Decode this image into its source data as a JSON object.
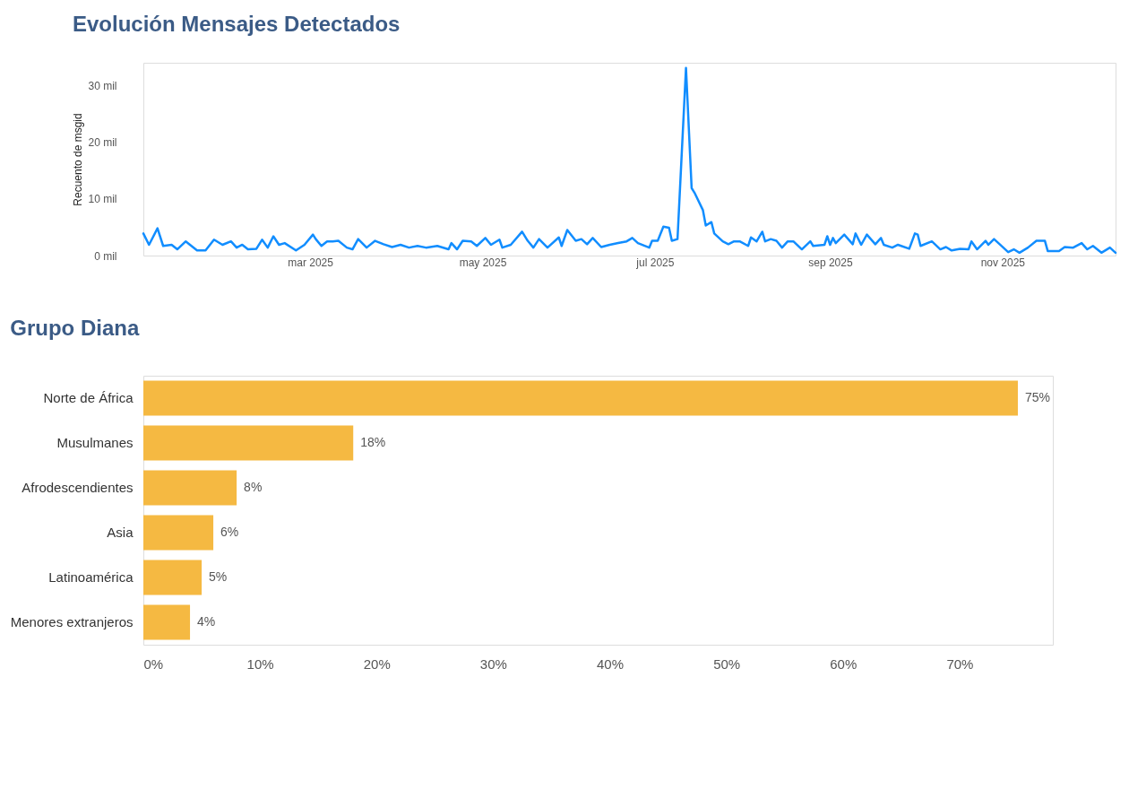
{
  "chart_data": [
    {
      "type": "line",
      "title": "Evolución Mensajes Detectados",
      "ylabel": "Recuento de msgid",
      "x": [
        "2025-01-01",
        "2025-01-03",
        "2025-01-06",
        "2025-01-08",
        "2025-01-11",
        "2025-01-13",
        "2025-01-16",
        "2025-01-20",
        "2025-01-23",
        "2025-01-26",
        "2025-01-29",
        "2025-02-01",
        "2025-02-03",
        "2025-02-05",
        "2025-02-07",
        "2025-02-10",
        "2025-02-12",
        "2025-02-14",
        "2025-02-16",
        "2025-02-18",
        "2025-02-20",
        "2025-02-24",
        "2025-02-27",
        "2025-03-02",
        "2025-03-03",
        "2025-03-05",
        "2025-03-07",
        "2025-03-09",
        "2025-03-11",
        "2025-03-14",
        "2025-03-16",
        "2025-03-18",
        "2025-03-21",
        "2025-03-24",
        "2025-03-27",
        "2025-03-30",
        "2025-04-02",
        "2025-04-05",
        "2025-04-08",
        "2025-04-11",
        "2025-04-15",
        "2025-04-19",
        "2025-04-20",
        "2025-04-22",
        "2025-04-24",
        "2025-04-27",
        "2025-04-29",
        "2025-05-02",
        "2025-05-04",
        "2025-05-07",
        "2025-05-08",
        "2025-05-11",
        "2025-05-15",
        "2025-05-17",
        "2025-05-19",
        "2025-05-21",
        "2025-05-24",
        "2025-05-28",
        "2025-05-29",
        "2025-05-31",
        "2025-06-03",
        "2025-06-05",
        "2025-06-07",
        "2025-06-09",
        "2025-06-12",
        "2025-06-15",
        "2025-06-18",
        "2025-06-21",
        "2025-06-23",
        "2025-06-25",
        "2025-06-29",
        "2025-06-30",
        "2025-07-02",
        "2025-07-04",
        "2025-07-06",
        "2025-07-07",
        "2025-07-09",
        "2025-07-12",
        "2025-07-14",
        "2025-07-15",
        "2025-07-18",
        "2025-07-19",
        "2025-07-21",
        "2025-07-22",
        "2025-07-25",
        "2025-07-27",
        "2025-07-29",
        "2025-07-31",
        "2025-08-03",
        "2025-08-04",
        "2025-08-06",
        "2025-08-08",
        "2025-08-09",
        "2025-08-11",
        "2025-08-13",
        "2025-08-15",
        "2025-08-17",
        "2025-08-19",
        "2025-08-22",
        "2025-08-25",
        "2025-08-26",
        "2025-08-30",
        "2025-08-31",
        "2025-09-01",
        "2025-09-02",
        "2025-09-03",
        "2025-09-06",
        "2025-09-09",
        "2025-09-10",
        "2025-09-12",
        "2025-09-14",
        "2025-09-17",
        "2025-09-19",
        "2025-09-20",
        "2025-09-23",
        "2025-09-25",
        "2025-09-29",
        "2025-10-01",
        "2025-10-02",
        "2025-10-03",
        "2025-10-07",
        "2025-10-10",
        "2025-10-12",
        "2025-10-14",
        "2025-10-17",
        "2025-10-20",
        "2025-10-21",
        "2025-10-23",
        "2025-10-26",
        "2025-10-27",
        "2025-10-29",
        "2025-10-31",
        "2025-11-03",
        "2025-11-05",
        "2025-11-07",
        "2025-11-10",
        "2025-11-13",
        "2025-11-16",
        "2025-11-17",
        "2025-11-21",
        "2025-11-23",
        "2025-11-26",
        "2025-11-29",
        "2025-12-01",
        "2025-12-03",
        "2025-12-06",
        "2025-12-09",
        "2025-12-11"
      ],
      "series": [
        {
          "color": "#118dff",
          "values": [
            3.9,
            1.9,
            4.8,
            1.7,
            1.9,
            1.1,
            2.5,
            0.9,
            0.9,
            2.8,
            1.9,
            2.5,
            1.4,
            1.9,
            1.1,
            1.2,
            2.8,
            1.4,
            3.4,
            1.9,
            2.2,
            0.9,
            1.9,
            3.7,
            2.9,
            1.7,
            2.5,
            2.5,
            2.6,
            1.4,
            1.1,
            2.9,
            1.4,
            2.6,
            2.0,
            1.5,
            1.9,
            1.4,
            1.7,
            1.4,
            1.7,
            1.1,
            2.2,
            1.1,
            2.6,
            2.5,
            1.7,
            3.1,
            1.9,
            2.8,
            1.4,
            1.9,
            4.2,
            2.6,
            1.4,
            2.9,
            1.4,
            3.2,
            1.7,
            4.5,
            2.6,
            2.9,
            2.0,
            3.1,
            1.5,
            1.9,
            2.2,
            2.5,
            3.1,
            2.2,
            1.4,
            2.6,
            2.6,
            5.1,
            4.9,
            2.6,
            2.9,
            33.1,
            11.9,
            11.1,
            8.0,
            5.3,
            5.9,
            3.9,
            2.5,
            2.0,
            2.5,
            2.5,
            1.7,
            3.2,
            2.5,
            4.2,
            2.5,
            2.9,
            2.6,
            1.4,
            2.5,
            2.5,
            1.1,
            2.5,
            1.7,
            1.9,
            3.4,
            1.9,
            3.1,
            2.2,
            3.7,
            2.0,
            3.9,
            1.9,
            3.7,
            2.0,
            3.1,
            1.9,
            1.4,
            1.9,
            1.2,
            3.9,
            3.7,
            1.7,
            2.5,
            1.1,
            1.5,
            0.9,
            1.2,
            1.1,
            2.5,
            1.1,
            2.6,
            1.9,
            2.9,
            2.0,
            0.6,
            1.1,
            0.5,
            1.4,
            2.6,
            2.6,
            0.8,
            0.8,
            1.5,
            1.4,
            2.2,
            1.1,
            1.7,
            0.5,
            1.4,
            0.5
          ]
        }
      ],
      "xlim": [
        "2025-01-01",
        "2025-12-11"
      ],
      "xticks": [
        {
          "value": "2025-03-01",
          "label": "mar 2025"
        },
        {
          "value": "2025-05-01",
          "label": "may 2025"
        },
        {
          "value": "2025-07-01",
          "label": "jul 2025"
        },
        {
          "value": "2025-09-01",
          "label": "sep 2025"
        },
        {
          "value": "2025-11-01",
          "label": "nov 2025"
        }
      ],
      "ylim": [
        0,
        34
      ],
      "yticks": [
        {
          "value": 0,
          "label": "0 mil"
        },
        {
          "value": 10,
          "label": "10 mil"
        },
        {
          "value": 20,
          "label": "20 mil"
        },
        {
          "value": 30,
          "label": "30 mil"
        }
      ]
    },
    {
      "type": "bar",
      "orientation": "horizontal",
      "title": "Grupo Diana",
      "categories": [
        "Norte de África",
        "Musulmanes",
        "Afrodescendientes",
        "Asia",
        "Latinoamérica",
        "Menores extranjeros"
      ],
      "values": [
        75,
        18,
        8,
        6,
        5,
        4
      ],
      "color": "#f5b942",
      "value_labels": [
        "75%",
        "18%",
        "8%",
        "6%",
        "5%",
        "4%"
      ],
      "xlim": [
        0,
        78
      ],
      "xticks": [
        {
          "value": 0,
          "label": "0%"
        },
        {
          "value": 10,
          "label": "10%"
        },
        {
          "value": 20,
          "label": "20%"
        },
        {
          "value": 30,
          "label": "30%"
        },
        {
          "value": 40,
          "label": "40%"
        },
        {
          "value": 50,
          "label": "50%"
        },
        {
          "value": 60,
          "label": "60%"
        },
        {
          "value": 70,
          "label": "70%"
        }
      ]
    }
  ]
}
